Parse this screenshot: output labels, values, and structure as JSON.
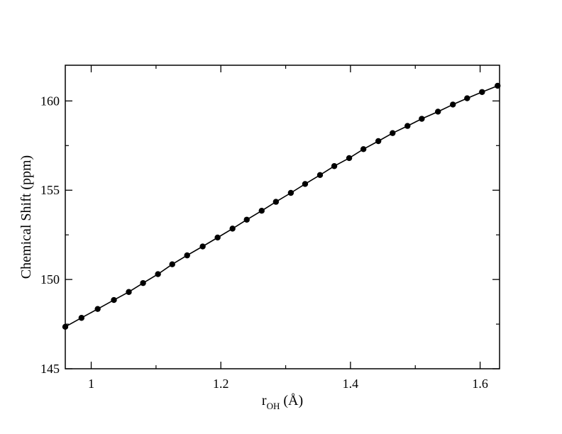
{
  "chart_data": {
    "type": "line",
    "title": "",
    "xlabel_main": "r",
    "xlabel_sub": "OH",
    "xlabel_unit": " (Å)",
    "ylabel": "Chemical Shift (ppm)",
    "xlim": [
      0.96,
      1.63
    ],
    "ylim": [
      145,
      162
    ],
    "x_ticks": [
      1.0,
      1.2,
      1.4,
      1.6
    ],
    "x_tick_labels": [
      "1",
      "1.2",
      "1.4",
      "1.6"
    ],
    "y_ticks": [
      145,
      150,
      155,
      160
    ],
    "y_tick_labels": [
      "145",
      "150",
      "155",
      "160"
    ],
    "grid": false,
    "marker": "circle",
    "color": "#000000",
    "series": [
      {
        "x": [
          0.96,
          0.985,
          1.01,
          1.035,
          1.058,
          1.08,
          1.103,
          1.125,
          1.148,
          1.172,
          1.195,
          1.218,
          1.24,
          1.263,
          1.285,
          1.308,
          1.33,
          1.353,
          1.375,
          1.398,
          1.42,
          1.443,
          1.465,
          1.488,
          1.51,
          1.535,
          1.558,
          1.58,
          1.603,
          1.627
        ],
        "y": [
          147.35,
          147.85,
          148.35,
          148.85,
          149.3,
          149.8,
          150.3,
          150.85,
          151.35,
          151.85,
          152.35,
          152.85,
          153.35,
          153.85,
          154.35,
          154.85,
          155.35,
          155.85,
          156.35,
          156.8,
          157.3,
          157.75,
          158.2,
          158.6,
          159.0,
          159.4,
          159.8,
          160.15,
          160.5,
          160.85
        ]
      }
    ]
  }
}
